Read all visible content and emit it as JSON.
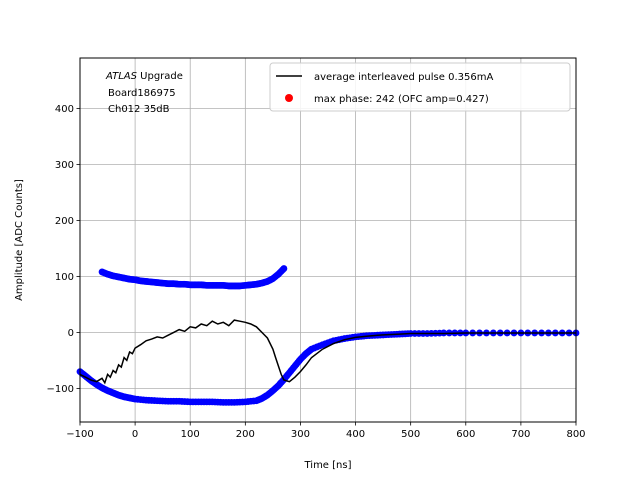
{
  "chart_data": {
    "type": "scatter",
    "xlabel": "Time [ns]",
    "ylabel": "Amplitude [ADC Counts]",
    "xlim": [
      -100,
      800
    ],
    "ylim": [
      -160,
      490
    ],
    "xticks": [
      -100,
      0,
      100,
      200,
      300,
      400,
      500,
      600,
      700,
      800
    ],
    "yticks": [
      -100,
      0,
      100,
      200,
      300,
      400
    ],
    "grid": true,
    "legend_position": "top-right",
    "annotation": {
      "italic": "ATLAS",
      "rest": " Upgrade",
      "line2": "Board186975",
      "line3": "Ch012 35dB"
    },
    "series": [
      {
        "name": "average interleaved pulse 0.356mA",
        "kind": "line",
        "color": "#000000",
        "x": [
          -100,
          -90,
          -80,
          -70,
          -60,
          -55,
          -50,
          -45,
          -40,
          -35,
          -30,
          -25,
          -20,
          -15,
          -10,
          -5,
          0,
          10,
          20,
          30,
          40,
          50,
          60,
          70,
          80,
          90,
          100,
          110,
          120,
          130,
          140,
          150,
          160,
          170,
          180,
          190,
          200,
          210,
          220,
          230,
          240,
          250,
          255,
          260,
          265,
          270,
          280,
          290,
          300,
          310,
          320,
          340,
          360,
          380,
          400,
          420,
          440,
          460,
          480,
          500,
          530,
          560,
          600,
          650,
          700,
          750,
          800
        ],
        "y": [
          -75,
          -80,
          -85,
          -88,
          -82,
          -90,
          -75,
          -80,
          -68,
          -72,
          -58,
          -62,
          -45,
          -50,
          -35,
          -38,
          -28,
          -22,
          -15,
          -12,
          -8,
          -10,
          -5,
          0,
          5,
          2,
          10,
          8,
          15,
          12,
          20,
          15,
          18,
          12,
          22,
          20,
          18,
          15,
          10,
          0,
          -10,
          -30,
          -45,
          -60,
          -75,
          -85,
          -88,
          -80,
          -70,
          -58,
          -45,
          -30,
          -20,
          -13,
          -9,
          -7,
          -5,
          -4,
          -3,
          -2,
          -2,
          -2,
          -1,
          -1,
          -1,
          -1,
          -1
        ]
      },
      {
        "name": "",
        "kind": "points-upper",
        "color": "#0000ff",
        "x": [
          -60,
          -50,
          -40,
          -30,
          -20,
          -10,
          0,
          10,
          20,
          30,
          40,
          50,
          60,
          70,
          80,
          90,
          100,
          110,
          120,
          130,
          140,
          150,
          160,
          170,
          180,
          190,
          200,
          210,
          220,
          230,
          240,
          250,
          260,
          270
        ],
        "y": [
          108,
          104,
          101,
          99,
          97,
          95,
          94,
          92,
          91,
          90,
          89,
          88,
          87,
          87,
          86,
          86,
          85,
          85,
          85,
          84,
          84,
          84,
          84,
          83,
          83,
          83,
          84,
          85,
          86,
          88,
          91,
          96,
          104,
          114
        ]
      },
      {
        "name": "",
        "kind": "points-lower",
        "color": "#0000ff",
        "x": [
          -100,
          -90,
          -80,
          -70,
          -60,
          -50,
          -40,
          -30,
          -20,
          -10,
          0,
          20,
          40,
          60,
          80,
          100,
          120,
          140,
          160,
          180,
          200,
          220,
          230,
          240,
          250,
          260,
          270,
          280,
          290,
          300,
          310,
          320,
          340,
          360,
          380,
          400,
          420,
          440,
          460,
          480,
          500,
          530,
          560,
          600,
          650,
          700,
          750,
          800
        ],
        "y": [
          -70,
          -78,
          -86,
          -93,
          -99,
          -104,
          -108,
          -112,
          -115,
          -117,
          -119,
          -121,
          -122,
          -123,
          -123,
          -124,
          -124,
          -124,
          -125,
          -125,
          -124,
          -122,
          -118,
          -112,
          -104,
          -95,
          -84,
          -72,
          -60,
          -48,
          -38,
          -30,
          -22,
          -15,
          -11,
          -8,
          -6,
          -5,
          -4,
          -3,
          -2,
          -2,
          -1,
          -1,
          -1,
          -1,
          -1,
          -1
        ]
      },
      {
        "name": "max phase: 242 (OFC amp=0.427)",
        "kind": "legend-marker",
        "color": "#ff0000",
        "x": [],
        "y": []
      }
    ]
  }
}
